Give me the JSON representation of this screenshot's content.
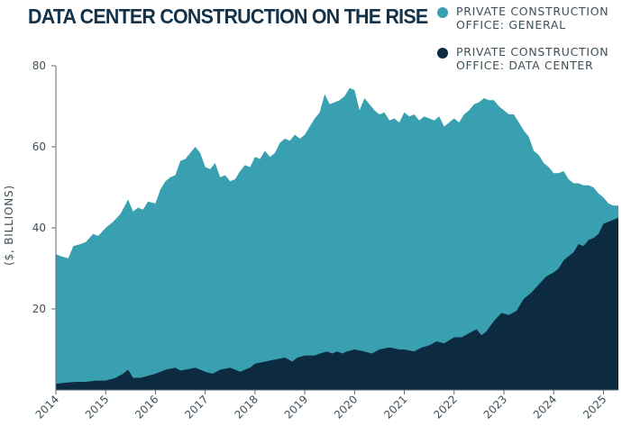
{
  "title": "DATA CENTER CONSTRUCTION ON THE RISE",
  "legend": [
    {
      "label": "PRIVATE CONSTRUCTION\nOFFICE: GENERAL",
      "color": "#38a0b0",
      "icon": "circle-icon"
    },
    {
      "label": "PRIVATE CONSTRUCTION\nOFFICE: DATA CENTER",
      "color": "#0c2a40",
      "icon": "circle-icon"
    }
  ],
  "chart_data": {
    "type": "area",
    "title": "DATA CENTER CONSTRUCTION ON THE RISE",
    "xlabel": "",
    "ylabel": "($, BILLIONS)",
    "xlim": [
      2014.0,
      2025.3
    ],
    "ylim": [
      0,
      80
    ],
    "yticks": [
      20,
      40,
      60,
      80
    ],
    "xticks": [
      2014,
      2015,
      2016,
      2017,
      2018,
      2019,
      2020,
      2021,
      2022,
      2023,
      2024,
      2025
    ],
    "grid": false,
    "legend_position": "top-right",
    "series": [
      {
        "name": "PRIVATE CONSTRUCTION OFFICE: GENERAL",
        "color": "#38a0b0",
        "x": [
          2014.0,
          2014.1,
          2014.25,
          2014.35,
          2014.5,
          2014.6,
          2014.75,
          2014.85,
          2015.0,
          2015.15,
          2015.3,
          2015.45,
          2015.55,
          2015.65,
          2015.75,
          2015.85,
          2016.0,
          2016.1,
          2016.2,
          2016.3,
          2016.4,
          2016.5,
          2016.6,
          2016.7,
          2016.8,
          2016.9,
          2017.0,
          2017.1,
          2017.2,
          2017.3,
          2017.4,
          2017.5,
          2017.6,
          2017.7,
          2017.8,
          2017.9,
          2018.0,
          2018.1,
          2018.2,
          2018.3,
          2018.4,
          2018.5,
          2018.6,
          2018.7,
          2018.8,
          2018.9,
          2019.0,
          2019.1,
          2019.2,
          2019.3,
          2019.4,
          2019.5,
          2019.6,
          2019.7,
          2019.8,
          2019.9,
          2020.0,
          2020.1,
          2020.2,
          2020.3,
          2020.4,
          2020.5,
          2020.6,
          2020.7,
          2020.8,
          2020.9,
          2021.0,
          2021.1,
          2021.2,
          2021.3,
          2021.4,
          2021.5,
          2021.6,
          2021.7,
          2021.8,
          2021.9,
          2022.0,
          2022.1,
          2022.2,
          2022.3,
          2022.4,
          2022.5,
          2022.6,
          2022.7,
          2022.8,
          2022.9,
          2023.0,
          2023.1,
          2023.2,
          2023.3,
          2023.4,
          2023.5,
          2023.6,
          2023.7,
          2023.8,
          2023.9,
          2024.0,
          2024.1,
          2024.2,
          2024.3,
          2024.4,
          2024.5,
          2024.6,
          2024.7,
          2024.8,
          2024.9,
          2025.0,
          2025.1,
          2025.2,
          2025.3
        ],
        "values": [
          33.5,
          33,
          32.5,
          35.5,
          36,
          36.5,
          38.5,
          38,
          40,
          41.5,
          43.5,
          47,
          44,
          45,
          44.5,
          46.5,
          46,
          49.5,
          51.5,
          52.5,
          53,
          56.5,
          57,
          58.5,
          60,
          58.5,
          55,
          54.5,
          56,
          52.5,
          53,
          51.5,
          52,
          54,
          55.5,
          55,
          57.5,
          57,
          59,
          57.5,
          58.5,
          61,
          62,
          61.5,
          63,
          62,
          63,
          65,
          67,
          68.5,
          73,
          70.5,
          71,
          71.5,
          72.5,
          74.5,
          74,
          69,
          72,
          70.5,
          69,
          68,
          68.5,
          66.5,
          67,
          66,
          68.5,
          67.5,
          68,
          66.5,
          67.5,
          67,
          66.5,
          67.5,
          65,
          66,
          67,
          66,
          68,
          69,
          70.5,
          71,
          72,
          71.5,
          71.5,
          70,
          69,
          68,
          68,
          66,
          64,
          62.5,
          59,
          58,
          56,
          55,
          53.5,
          53.5,
          54,
          52,
          51,
          51,
          50.5,
          50.5,
          50,
          48.5,
          47.5,
          46,
          45.5,
          45.5
        ]
      },
      {
        "name": "PRIVATE CONSTRUCTION OFFICE: DATA CENTER",
        "color": "#0c2a40",
        "x": [
          2014.0,
          2014.2,
          2014.4,
          2014.6,
          2014.8,
          2015.0,
          2015.2,
          2015.35,
          2015.45,
          2015.55,
          2015.7,
          2015.85,
          2016.0,
          2016.2,
          2016.4,
          2016.5,
          2016.6,
          2016.8,
          2017.0,
          2017.15,
          2017.3,
          2017.5,
          2017.7,
          2017.9,
          2018.0,
          2018.2,
          2018.4,
          2018.6,
          2018.75,
          2018.85,
          2019.0,
          2019.2,
          2019.3,
          2019.45,
          2019.55,
          2019.65,
          2019.75,
          2019.85,
          2020.0,
          2020.2,
          2020.35,
          2020.5,
          2020.7,
          2020.9,
          2021.0,
          2021.2,
          2021.35,
          2021.5,
          2021.65,
          2021.8,
          2022.0,
          2022.15,
          2022.3,
          2022.45,
          2022.55,
          2022.65,
          2022.8,
          2022.95,
          2023.1,
          2023.25,
          2023.4,
          2023.55,
          2023.7,
          2023.85,
          2024.0,
          2024.1,
          2024.2,
          2024.3,
          2024.4,
          2024.5,
          2024.6,
          2024.7,
          2024.8,
          2024.9,
          2025.0,
          2025.1,
          2025.2,
          2025.3
        ],
        "values": [
          1.5,
          1.8,
          2,
          2,
          2.3,
          2.3,
          3,
          4,
          5,
          3,
          3,
          3.5,
          4,
          5,
          5.5,
          4.8,
          5,
          5.5,
          4.5,
          4,
          5,
          5.5,
          4.5,
          5.5,
          6.5,
          7,
          7.5,
          8,
          7,
          8,
          8.5,
          8.5,
          9,
          9.5,
          9,
          9.5,
          9,
          9.5,
          10,
          9.5,
          9,
          10,
          10.5,
          10,
          10,
          9.5,
          10.5,
          11,
          12,
          11.5,
          13,
          13,
          14,
          15,
          13.5,
          14.5,
          17,
          19,
          18.5,
          19.5,
          22.5,
          24,
          26,
          28,
          29,
          30,
          32,
          33,
          34,
          36,
          35.5,
          37,
          37.5,
          38.5,
          41,
          41.5,
          42,
          42.5
        ]
      }
    ]
  }
}
